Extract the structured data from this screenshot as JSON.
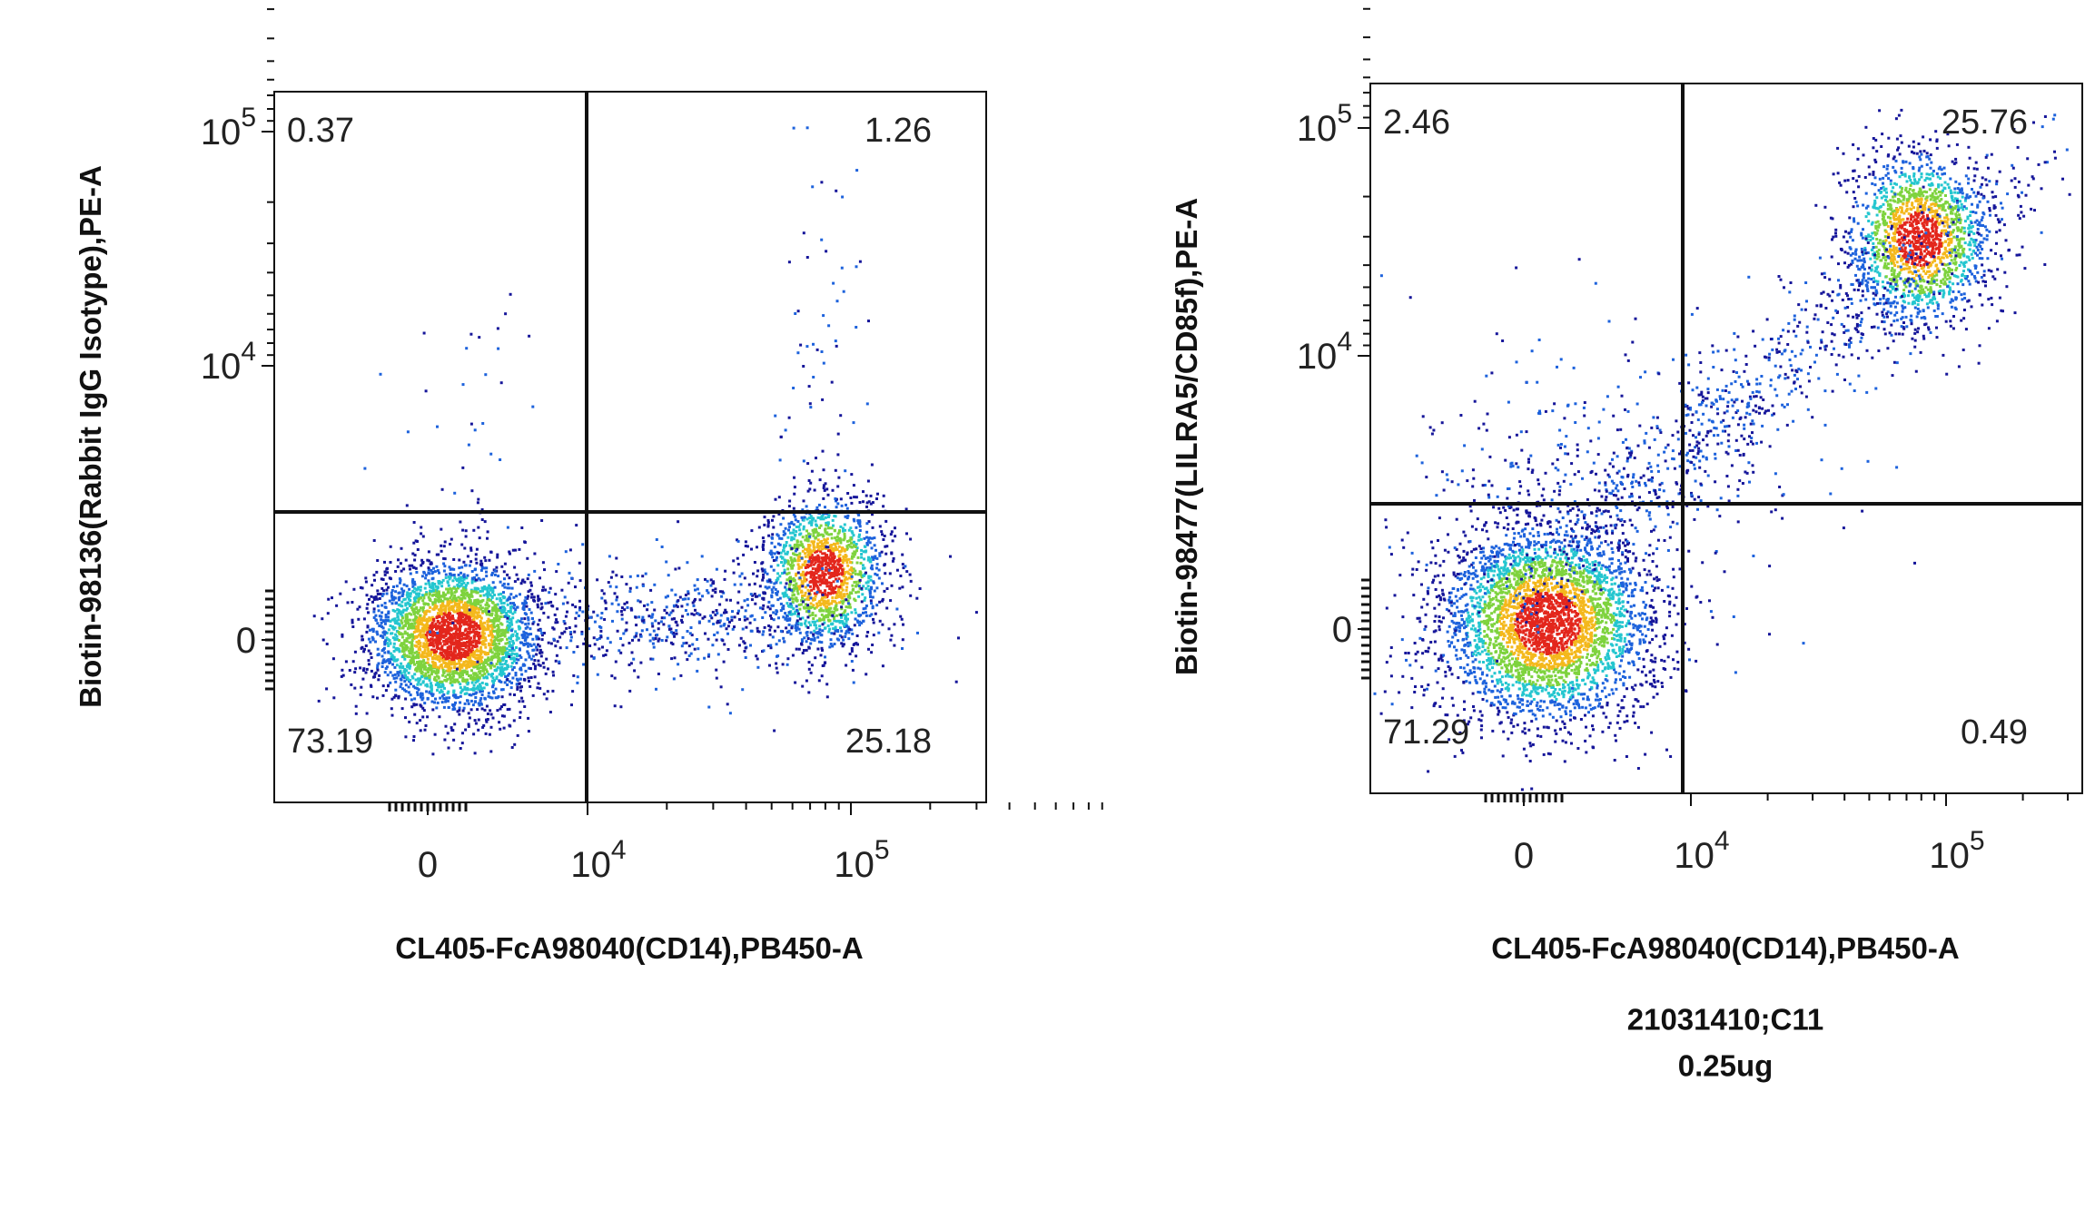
{
  "panels": [
    {
      "y_label": "Biotin-98136(Rabbit IgG Isotype),PE-A",
      "x_label": "CL405-FcA98040(CD14),PB450-A",
      "quadrants": {
        "upper_left": 0.37,
        "upper_right": 1.26,
        "lower_left": 73.19,
        "lower_right": 25.18
      },
      "y_ticks": [
        {
          "base": "10",
          "exponent": "5"
        },
        {
          "base": "10",
          "exponent": "4"
        },
        {
          "base": "0"
        }
      ],
      "x_ticks": [
        {
          "base": "0"
        },
        {
          "base": "10",
          "exponent": "4"
        },
        {
          "base": "10",
          "exponent": "5"
        }
      ]
    },
    {
      "y_label": "Biotin-98477(LILRA5/CD85f),PE-A",
      "x_label": "CL405-FcA98040(CD14),PB450-A",
      "quadrants": {
        "upper_left": 2.46,
        "upper_right": 25.76,
        "lower_left": 71.29,
        "lower_right": 0.49
      },
      "y_ticks": [
        {
          "base": "10",
          "exponent": "5"
        },
        {
          "base": "10",
          "exponent": "4"
        },
        {
          "base": "0"
        }
      ],
      "x_ticks": [
        {
          "base": "0"
        },
        {
          "base": "10",
          "exponent": "4"
        },
        {
          "base": "10",
          "exponent": "5"
        }
      ]
    }
  ],
  "footer": {
    "line1": "21031410;C11",
    "line2": "0.25ug"
  }
}
